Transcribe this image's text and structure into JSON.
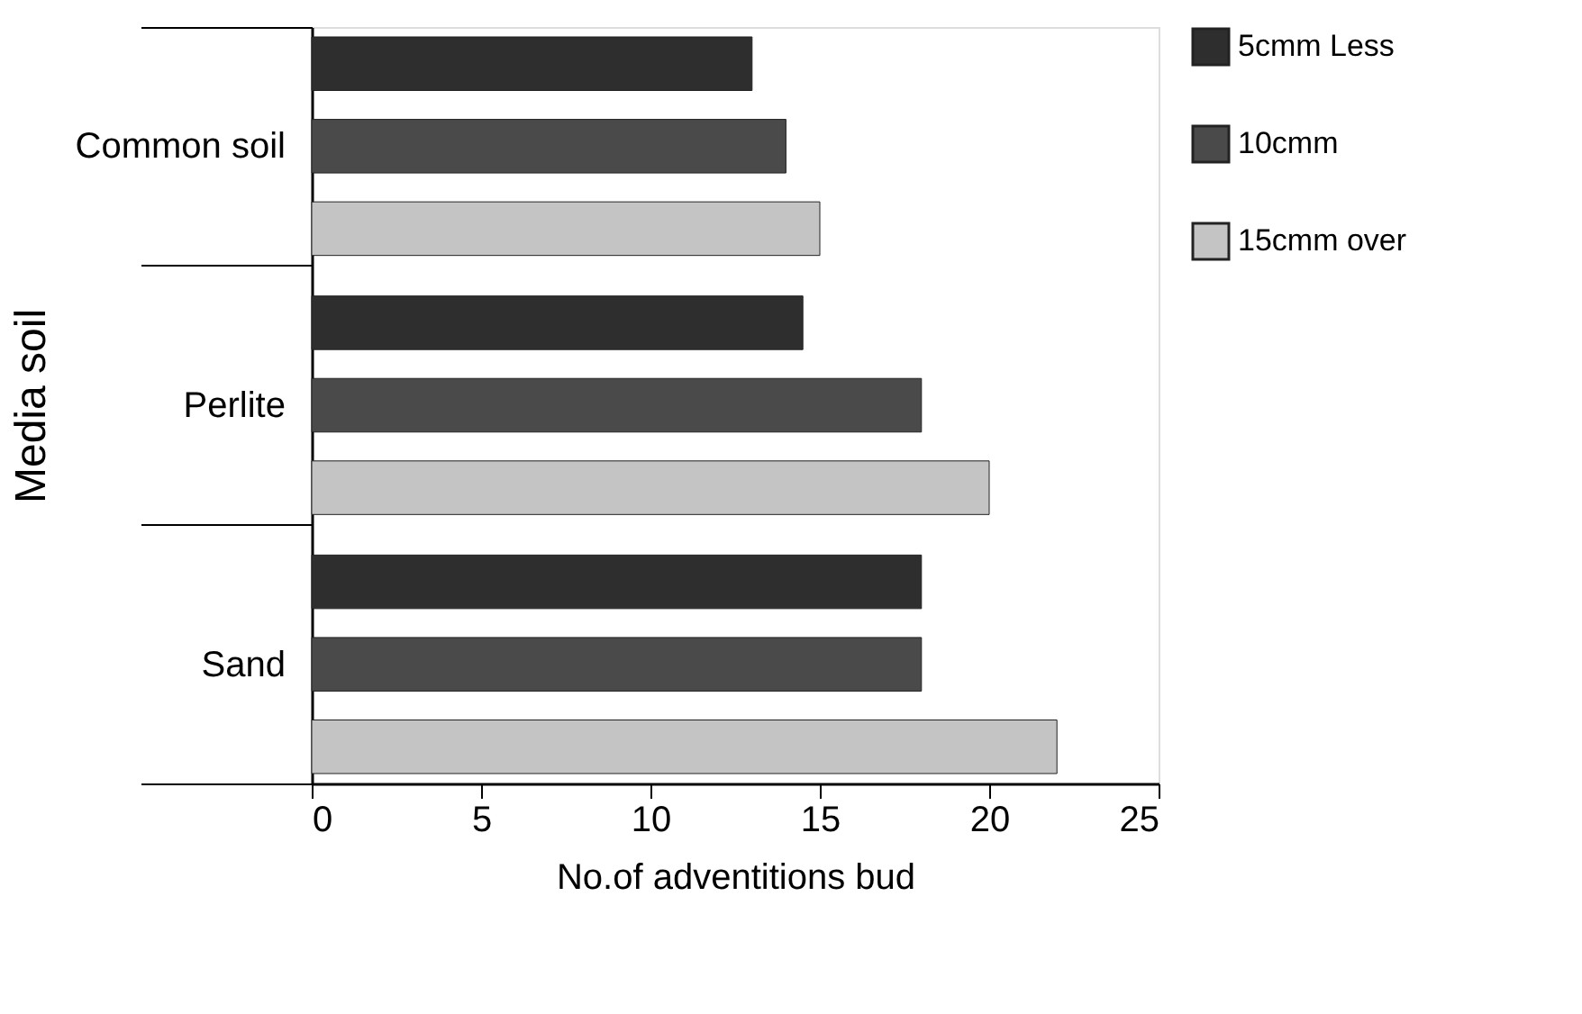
{
  "chart_data": {
    "type": "bar",
    "orientation": "horizontal",
    "xlabel": "No.of adventitions bud",
    "ylabel": "Media soil",
    "categories": [
      "Common soil",
      "Perlite",
      "Sand"
    ],
    "series": [
      {
        "name": "5cmm Less",
        "color": "#2e2e2e",
        "values": [
          13,
          14.5,
          18
        ]
      },
      {
        "name": "10cmm",
        "color": "#4a4a4a",
        "values": [
          14,
          18,
          18
        ]
      },
      {
        "name": "15cmm over",
        "color": "#c4c4c4",
        "values": [
          15,
          20,
          22
        ]
      }
    ],
    "xlim": [
      0,
      25
    ],
    "xticks": [
      0,
      5,
      10,
      15,
      20,
      25
    ],
    "grid": false,
    "legend": "right"
  }
}
